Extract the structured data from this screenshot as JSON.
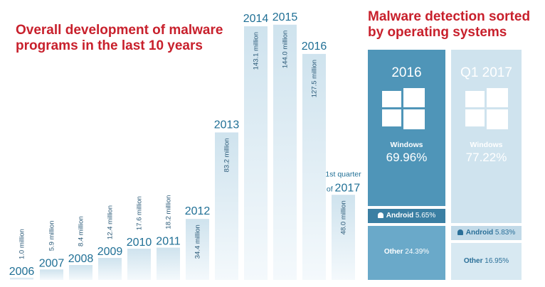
{
  "titles": {
    "left": "Overall development of malware programs in the last 10 years",
    "right": "Malware detection sorted by operating systems"
  },
  "chart_data": [
    {
      "type": "bar",
      "title": "Overall development of malware programs in the last 10 years",
      "categories": [
        "2006",
        "2007",
        "2008",
        "2009",
        "2010",
        "2011",
        "2012",
        "2013",
        "2014",
        "2015",
        "2016",
        "1st quarter of 2017"
      ],
      "values": [
        1.0,
        5.9,
        8.4,
        12.4,
        17.6,
        18.2,
        34.4,
        83.2,
        143.1,
        144.0,
        127.5,
        48.0
      ],
      "value_labels": [
        "1.0 million",
        "5.9 million",
        "8.4 million",
        "12.4 million",
        "17.6 million",
        "18.2 million",
        "34.4 million",
        "83.2 million",
        "143.1 million",
        "144.0 million",
        "127.5 million",
        "48.0 million"
      ],
      "unit": "million",
      "ylim": [
        0,
        150
      ]
    },
    {
      "type": "table",
      "title": "Malware detection sorted by operating systems",
      "columns": [
        {
          "label": "2016",
          "windows_label": "Windows",
          "windows": 69.96,
          "windows_text": "69.96%",
          "android_label": "Android",
          "android": 5.65,
          "android_text": "5.65%",
          "other_label": "Other",
          "other": 24.39,
          "other_text": "24.39%"
        },
        {
          "label": "Q1 2017",
          "windows_label": "Windows",
          "windows": 77.22,
          "windows_text": "77.22%",
          "android_label": "Android",
          "android": 5.83,
          "android_text": "5.83%",
          "other_label": "Other",
          "other": 16.95,
          "other_text": "16.95%"
        }
      ]
    }
  ],
  "colors": {
    "title_red": "#c8202c",
    "bar_top": "#cfe3ee",
    "bar_bottom": "#f4f9fc",
    "year_text": "#1f6f95",
    "col1_win": "#4f95b8",
    "col1_android": "#3b7fa3",
    "col1_other": "#6aa9c9",
    "col2_win": "#cfe3ee",
    "col2_android": "#c2dae8",
    "col2_other": "#d8e9f2",
    "col2_text": "#2a6f98"
  }
}
